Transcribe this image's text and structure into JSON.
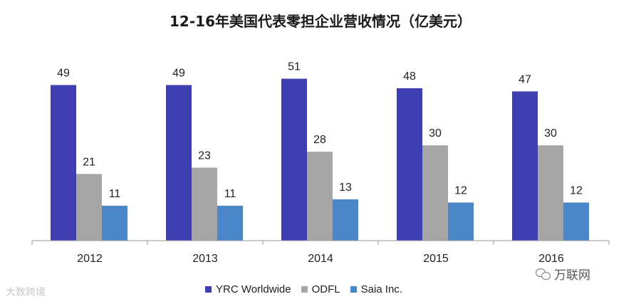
{
  "chart_data": {
    "type": "bar",
    "title": "12-16年美国代表零担企业营收情况（亿美元）",
    "categories": [
      "2012",
      "2013",
      "2014",
      "2015",
      "2016"
    ],
    "series": [
      {
        "name": "YRC Worldwide",
        "color": "#3f3fb2",
        "values": [
          49,
          49,
          51,
          48,
          47
        ]
      },
      {
        "name": "ODFL",
        "color": "#a6a6a6",
        "values": [
          21,
          23,
          28,
          30,
          30
        ]
      },
      {
        "name": "Saia Inc.",
        "color": "#4a86c8",
        "values": [
          11,
          11,
          13,
          12,
          12
        ]
      }
    ],
    "ylim": [
      0,
      58
    ],
    "grid": false,
    "legend_position": "bottom"
  },
  "watermarks": {
    "left": "大数跨境",
    "right": "万联网"
  }
}
